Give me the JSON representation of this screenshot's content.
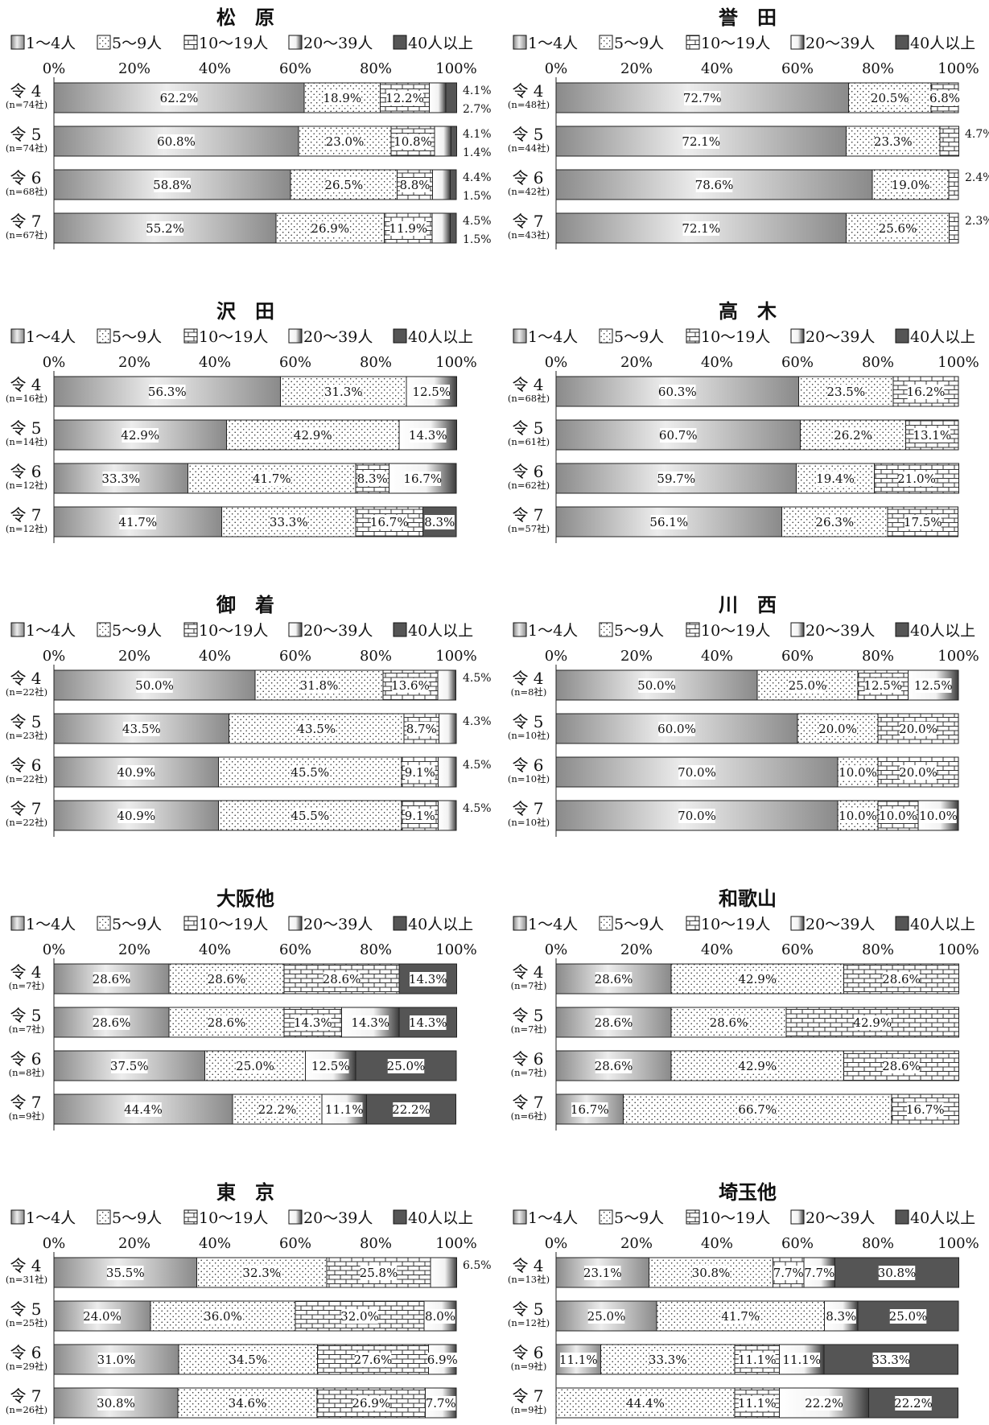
{
  "legend": [
    "1～4人",
    "5～9人",
    "10～19人",
    "20～39人",
    "40人以上"
  ],
  "axis_ticks": [
    "0%",
    "20%",
    "40%",
    "60%",
    "80%",
    "100%"
  ],
  "chart_data": [
    {
      "type": "bar",
      "stacked": true,
      "orientation": "horizontal",
      "title": "松　原",
      "xlim": [
        0,
        100
      ],
      "categories": [
        "令 4",
        "令 5",
        "令 6",
        "令 7"
      ],
      "category_notes": [
        "(n=74社)",
        "(n=74社)",
        "(n=68社)",
        "(n=67社)"
      ],
      "values": [
        [
          62.2,
          18.9,
          12.2,
          4.1,
          2.7
        ],
        [
          60.8,
          23.0,
          10.8,
          4.1,
          1.4
        ],
        [
          58.8,
          26.5,
          8.8,
          4.4,
          1.5
        ],
        [
          55.2,
          26.9,
          11.9,
          4.5,
          1.5
        ]
      ]
    },
    {
      "type": "bar",
      "stacked": true,
      "orientation": "horizontal",
      "title": "誉　田",
      "xlim": [
        0,
        100
      ],
      "categories": [
        "令 4",
        "令 5",
        "令 6",
        "令 7"
      ],
      "category_notes": [
        "(n=48社)",
        "(n=44社)",
        "(n=42社)",
        "(n=43社)"
      ],
      "values": [
        [
          72.7,
          20.5,
          6.8,
          0,
          0
        ],
        [
          72.1,
          23.3,
          4.7,
          0,
          0
        ],
        [
          78.6,
          19.0,
          2.4,
          0,
          0
        ],
        [
          72.1,
          25.6,
          2.3,
          0,
          0
        ]
      ]
    },
    {
      "type": "bar",
      "stacked": true,
      "orientation": "horizontal",
      "title": "沢　田",
      "xlim": [
        0,
        100
      ],
      "categories": [
        "令 4",
        "令 5",
        "令 6",
        "令 7"
      ],
      "category_notes": [
        "(n=16社)",
        "(n=14社)",
        "(n=12社)",
        "(n=12社)"
      ],
      "values": [
        [
          56.3,
          31.3,
          0,
          12.5,
          0
        ],
        [
          42.9,
          42.9,
          0,
          14.3,
          0
        ],
        [
          33.3,
          41.7,
          8.3,
          16.7,
          0
        ],
        [
          41.7,
          33.3,
          16.7,
          0,
          8.3
        ]
      ]
    },
    {
      "type": "bar",
      "stacked": true,
      "orientation": "horizontal",
      "title": "高　木",
      "xlim": [
        0,
        100
      ],
      "categories": [
        "令 4",
        "令 5",
        "令 6",
        "令 7"
      ],
      "category_notes": [
        "(n=68社)",
        "(n=61社)",
        "(n=62社)",
        "(n=57社)"
      ],
      "values": [
        [
          60.3,
          23.5,
          16.2,
          0,
          0
        ],
        [
          60.7,
          26.2,
          13.1,
          0,
          0
        ],
        [
          59.7,
          19.4,
          21.0,
          0,
          0
        ],
        [
          56.1,
          26.3,
          17.5,
          0,
          0
        ]
      ]
    },
    {
      "type": "bar",
      "stacked": true,
      "orientation": "horizontal",
      "title": "御　着",
      "xlim": [
        0,
        100
      ],
      "categories": [
        "令 4",
        "令 5",
        "令 6",
        "令 7"
      ],
      "category_notes": [
        "(n=22社)",
        "(n=23社)",
        "(n=22社)",
        "(n=22社)"
      ],
      "values": [
        [
          50.0,
          31.8,
          13.6,
          4.5,
          0
        ],
        [
          43.5,
          43.5,
          8.7,
          4.3,
          0
        ],
        [
          40.9,
          45.5,
          9.1,
          4.5,
          0
        ],
        [
          40.9,
          45.5,
          9.1,
          4.5,
          0
        ]
      ]
    },
    {
      "type": "bar",
      "stacked": true,
      "orientation": "horizontal",
      "title": "川　西",
      "xlim": [
        0,
        100
      ],
      "categories": [
        "令 4",
        "令 5",
        "令 6",
        "令 7"
      ],
      "category_notes": [
        "(n=8社)",
        "(n=10社)",
        "(n=10社)",
        "(n=10社)"
      ],
      "values": [
        [
          50.0,
          25.0,
          12.5,
          12.5,
          0
        ],
        [
          60.0,
          20.0,
          20.0,
          0,
          0
        ],
        [
          70.0,
          10.0,
          20.0,
          0,
          0
        ],
        [
          70.0,
          10.0,
          10.0,
          10.0,
          0
        ]
      ]
    },
    {
      "type": "bar",
      "stacked": true,
      "orientation": "horizontal",
      "title": "大阪他",
      "xlim": [
        0,
        100
      ],
      "categories": [
        "令 4",
        "令 5",
        "令 6",
        "令 7"
      ],
      "category_notes": [
        "(n=7社)",
        "(n=7社)",
        "(n=8社)",
        "(n=9社)"
      ],
      "values": [
        [
          28.6,
          28.6,
          28.6,
          0,
          14.3
        ],
        [
          28.6,
          28.6,
          14.3,
          14.3,
          14.3
        ],
        [
          37.5,
          25.0,
          0,
          12.5,
          25.0
        ],
        [
          44.4,
          22.2,
          0,
          11.1,
          22.2
        ]
      ]
    },
    {
      "type": "bar",
      "stacked": true,
      "orientation": "horizontal",
      "title": "和歌山",
      "xlim": [
        0,
        100
      ],
      "categories": [
        "令 4",
        "令 5",
        "令 6",
        "令 7"
      ],
      "category_notes": [
        "(n=7社)",
        "(n=7社)",
        "(n=7社)",
        "(n=6社)"
      ],
      "values": [
        [
          28.6,
          42.9,
          28.6,
          0,
          0
        ],
        [
          28.6,
          28.6,
          42.9,
          0,
          0
        ],
        [
          28.6,
          42.9,
          28.6,
          0,
          0
        ],
        [
          16.7,
          66.7,
          16.7,
          0,
          0
        ]
      ]
    },
    {
      "type": "bar",
      "stacked": true,
      "orientation": "horizontal",
      "title": "東　京",
      "xlim": [
        0,
        100
      ],
      "categories": [
        "令 4",
        "令 5",
        "令 6",
        "令 7"
      ],
      "category_notes": [
        "(n=31社)",
        "(n=25社)",
        "(n=29社)",
        "(n=26社)"
      ],
      "values": [
        [
          35.5,
          32.3,
          25.8,
          6.5,
          0
        ],
        [
          24.0,
          36.0,
          32.0,
          8.0,
          0
        ],
        [
          31.0,
          34.5,
          27.6,
          6.9,
          0
        ],
        [
          30.8,
          34.6,
          26.9,
          7.7,
          0
        ]
      ]
    },
    {
      "type": "bar",
      "stacked": true,
      "orientation": "horizontal",
      "title": "埼玉他",
      "xlim": [
        0,
        100
      ],
      "categories": [
        "令 4",
        "令 5",
        "令 6",
        "令 7"
      ],
      "category_notes": [
        "(n=13社)",
        "(n=12社)",
        "(n=9社)",
        "(n=9社)"
      ],
      "values": [
        [
          23.1,
          30.8,
          7.7,
          7.7,
          30.8
        ],
        [
          25.0,
          41.7,
          0,
          8.3,
          25.0
        ],
        [
          11.1,
          33.3,
          11.1,
          11.1,
          33.3
        ],
        [
          0,
          44.4,
          11.1,
          22.2,
          22.2
        ]
      ]
    }
  ]
}
